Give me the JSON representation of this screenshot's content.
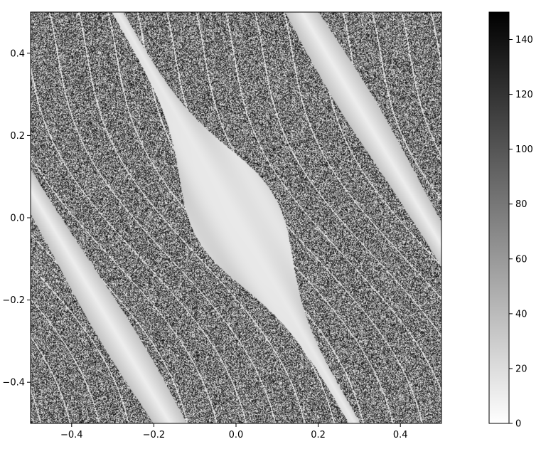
{
  "chart_data": {
    "type": "heatmap",
    "title": "",
    "xlabel": "",
    "ylabel": "",
    "xlim": [
      -0.5,
      0.5
    ],
    "ylim": [
      -0.5,
      0.5
    ],
    "x_ticks": [
      -0.4,
      -0.2,
      0.0,
      0.2,
      0.4
    ],
    "x_tick_labels": [
      "−0.4",
      "−0.2",
      "0.0",
      "0.2",
      "0.4"
    ],
    "y_ticks": [
      -0.4,
      -0.2,
      0.0,
      0.2,
      0.4
    ],
    "y_tick_labels": [
      "−0.4",
      "−0.2",
      "0.0",
      "0.2",
      "0.4"
    ],
    "colormap": "gray_r",
    "colorbar": {
      "range": [
        0,
        150
      ],
      "ticks": [
        0,
        20,
        40,
        60,
        80,
        100,
        120,
        140
      ],
      "tick_labels": [
        "0",
        "20",
        "40",
        "60",
        "80",
        "100",
        "120",
        "140"
      ]
    },
    "grid": false,
    "features": {
      "central_island": {
        "center": [
          0.0,
          0.0
        ],
        "value_range": [
          5,
          30
        ],
        "description_values": "smooth low-value region elongated along the diagonal from (-0.3, 0.5) to (0.3, -0.5)"
      },
      "chaotic_sea_value_range": [
        0,
        150
      ],
      "secondary_islands": [
        {
          "x_at_top": 0.32,
          "x_at_bottom": 0.5
        },
        {
          "x_at_top": -0.5,
          "x_at_bottom": -0.32
        }
      ]
    }
  }
}
